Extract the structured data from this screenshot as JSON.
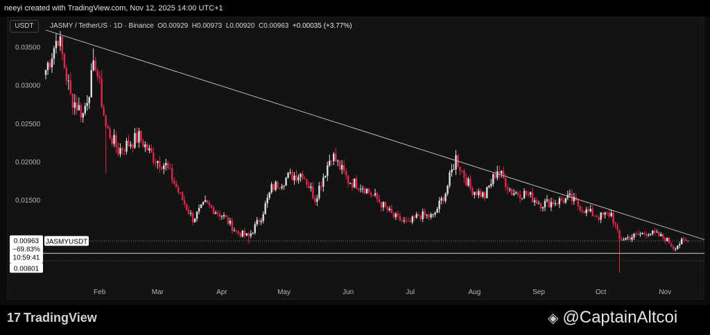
{
  "header": {
    "title": "neeyi created with TradingView.com, Nov 12, 2025 14:00 UTC+1"
  },
  "toolbar": {
    "currency": "USDT"
  },
  "legend": {
    "symbol": "JASMY / TetherUS · 1D · Binance",
    "open": "O0.00929",
    "high": "H0.00973",
    "low": "L0.00920",
    "close": "C0.00963",
    "change": "+0.00035 (+3.77%)"
  },
  "price_labels": {
    "last_price": "0.00963",
    "change_pct": "−69.83%",
    "countdown": "10:59:41",
    "symbol_tag": "JASMYUSDT",
    "horizontal_line": "0.00801"
  },
  "branding": {
    "logo": "TradingView",
    "watermark": "@CaptainAltcoi"
  },
  "colors": {
    "up": "#e0e0e0",
    "down": "#e0274a",
    "background": "#131313",
    "trendline": "#bdbdbd"
  },
  "chart_data": {
    "type": "candlestick",
    "title": "",
    "yticks": [
      0.035,
      0.03,
      0.025,
      0.02,
      0.015
    ],
    "ytick_labels": [
      "0.03500",
      "0.03000",
      "0.02500",
      "0.02000",
      "0.01500"
    ],
    "ylim": [
      0.0045,
      0.0375
    ],
    "xlim": [
      "2025-01-06",
      "2025-11-20"
    ],
    "month_labels": [
      {
        "label": "Feb",
        "date": "2025-02-01"
      },
      {
        "label": "Mar",
        "date": "2025-03-01"
      },
      {
        "label": "Apr",
        "date": "2025-04-01"
      },
      {
        "label": "May",
        "date": "2025-05-01"
      },
      {
        "label": "Jun",
        "date": "2025-06-01"
      },
      {
        "label": "Jul",
        "date": "2025-07-01"
      },
      {
        "label": "Aug",
        "date": "2025-08-01"
      },
      {
        "label": "Sep",
        "date": "2025-09-01"
      },
      {
        "label": "Oct",
        "date": "2025-10-01"
      },
      {
        "label": "Nov",
        "date": "2025-11-01"
      }
    ],
    "trendline": {
      "from": {
        "date": "2025-01-06",
        "price": 0.0372
      },
      "to": {
        "date": "2025-11-20",
        "price": 0.0098
      }
    },
    "horizontal_line": 0.00801,
    "last_price": 0.00963,
    "close_path": [
      {
        "date": "2025-01-06",
        "price": 0.032
      },
      {
        "date": "2025-01-12",
        "price": 0.0365
      },
      {
        "date": "2025-01-18",
        "price": 0.0285
      },
      {
        "date": "2025-01-24",
        "price": 0.0262
      },
      {
        "date": "2025-01-30",
        "price": 0.033
      },
      {
        "date": "2025-02-04",
        "price": 0.0245
      },
      {
        "date": "2025-02-10",
        "price": 0.0215
      },
      {
        "date": "2025-02-20",
        "price": 0.0232
      },
      {
        "date": "2025-02-27",
        "price": 0.0205
      },
      {
        "date": "2025-03-05",
        "price": 0.0195
      },
      {
        "date": "2025-03-12",
        "price": 0.0155
      },
      {
        "date": "2025-03-18",
        "price": 0.0125
      },
      {
        "date": "2025-03-24",
        "price": 0.0145
      },
      {
        "date": "2025-04-02",
        "price": 0.0128
      },
      {
        "date": "2025-04-08",
        "price": 0.0108
      },
      {
        "date": "2025-04-14",
        "price": 0.0102
      },
      {
        "date": "2025-04-20",
        "price": 0.0128
      },
      {
        "date": "2025-04-25",
        "price": 0.0165
      },
      {
        "date": "2025-05-03",
        "price": 0.018
      },
      {
        "date": "2025-05-10",
        "price": 0.0185
      },
      {
        "date": "2025-05-16",
        "price": 0.0152
      },
      {
        "date": "2025-05-24",
        "price": 0.021
      },
      {
        "date": "2025-06-01",
        "price": 0.0175
      },
      {
        "date": "2025-06-08",
        "price": 0.0168
      },
      {
        "date": "2025-06-16",
        "price": 0.0148
      },
      {
        "date": "2025-06-23",
        "price": 0.0128
      },
      {
        "date": "2025-06-30",
        "price": 0.0118
      },
      {
        "date": "2025-07-05",
        "price": 0.013
      },
      {
        "date": "2025-07-12",
        "price": 0.0128
      },
      {
        "date": "2025-07-18",
        "price": 0.016
      },
      {
        "date": "2025-07-23",
        "price": 0.0205
      },
      {
        "date": "2025-07-30",
        "price": 0.0165
      },
      {
        "date": "2025-08-06",
        "price": 0.0155
      },
      {
        "date": "2025-08-12",
        "price": 0.019
      },
      {
        "date": "2025-08-19",
        "price": 0.016
      },
      {
        "date": "2025-08-26",
        "price": 0.0158
      },
      {
        "date": "2025-09-02",
        "price": 0.0145
      },
      {
        "date": "2025-09-10",
        "price": 0.0148
      },
      {
        "date": "2025-09-16",
        "price": 0.0152
      },
      {
        "date": "2025-09-24",
        "price": 0.0135
      },
      {
        "date": "2025-09-30",
        "price": 0.0128
      },
      {
        "date": "2025-10-06",
        "price": 0.0132
      },
      {
        "date": "2025-10-10",
        "price": 0.0098
      },
      {
        "date": "2025-10-16",
        "price": 0.0102
      },
      {
        "date": "2025-10-24",
        "price": 0.0108
      },
      {
        "date": "2025-11-01",
        "price": 0.01
      },
      {
        "date": "2025-11-05",
        "price": 0.0088
      },
      {
        "date": "2025-11-09",
        "price": 0.0095
      },
      {
        "date": "2025-11-12",
        "price": 0.00963
      }
    ],
    "wick_events": [
      {
        "date": "2025-01-11",
        "high": 0.0368
      },
      {
        "date": "2025-01-29",
        "high": 0.0348
      },
      {
        "date": "2025-02-04",
        "low": 0.0185
      },
      {
        "date": "2025-10-10",
        "low": 0.0055
      },
      {
        "date": "2025-04-14",
        "low": 0.0093
      }
    ]
  }
}
